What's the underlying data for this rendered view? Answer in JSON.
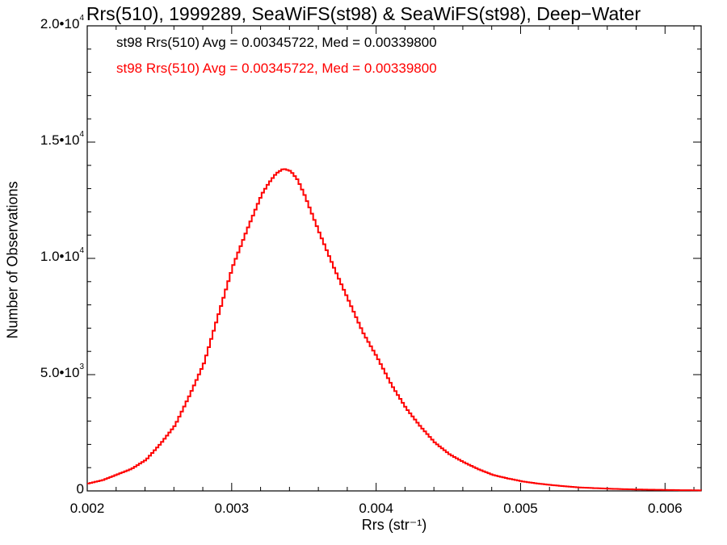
{
  "chart_data": {
    "type": "histogram",
    "title": "Rrs(510), 1999289, SeaWiFS(st98) & SeaWiFS(st98), Deep−Water",
    "xlabel": "Rrs (str⁻¹)",
    "ylabel": "Number of Observations",
    "xlim": [
      0.002,
      0.00625
    ],
    "ylim": [
      0,
      20000
    ],
    "x_ticks": [
      "0.002",
      "0.003",
      "0.004",
      "0.005",
      "0.006"
    ],
    "y_ticks": [
      {
        "mantissa": "0",
        "exp": ""
      },
      {
        "mantissa": "5.0•",
        "base": "10",
        "exp": "3"
      },
      {
        "mantissa": "1.0•",
        "base": "10",
        "exp": "4"
      },
      {
        "mantissa": "1.5•",
        "base": "10",
        "exp": "4"
      },
      {
        "mantissa": "2.0•",
        "base": "10",
        "exp": "4"
      }
    ],
    "legend": [
      {
        "text": "st98 Rrs(510) Avg = 0.00345722, Med = 0.00339800",
        "color": "#000000"
      },
      {
        "text": "st98 Rrs(510) Avg = 0.00345722, Med = 0.00339800",
        "color": "#ff0000"
      }
    ],
    "legend_position": "top-left",
    "grid": false,
    "series": [
      {
        "color": "#ff0000",
        "x": [
          0.002,
          0.0021,
          0.0022,
          0.0023,
          0.0024,
          0.0025,
          0.0026,
          0.0027,
          0.0028,
          0.0029,
          0.003,
          0.0031,
          0.0032,
          0.00325,
          0.0033,
          0.00335,
          0.0034,
          0.00345,
          0.0035,
          0.0036,
          0.0037,
          0.0038,
          0.0039,
          0.004,
          0.0041,
          0.0042,
          0.0043,
          0.0044,
          0.0045,
          0.0046,
          0.0047,
          0.0048,
          0.0049,
          0.005,
          0.0051,
          0.0052,
          0.0053,
          0.0054,
          0.0055,
          0.0056,
          0.0057,
          0.0058,
          0.0059,
          0.006,
          0.0061,
          0.0062,
          0.00625
        ],
        "y": [
          350,
          500,
          750,
          1000,
          1400,
          2100,
          2900,
          4200,
          5600,
          7700,
          9800,
          11400,
          12900,
          13400,
          13800,
          14000,
          13900,
          13500,
          12800,
          11200,
          9700,
          8300,
          6900,
          5800,
          4600,
          3600,
          2800,
          2100,
          1600,
          1250,
          950,
          700,
          550,
          420,
          330,
          260,
          200,
          150,
          120,
          95,
          75,
          60,
          50,
          40,
          30,
          25,
          20
        ]
      }
    ]
  }
}
